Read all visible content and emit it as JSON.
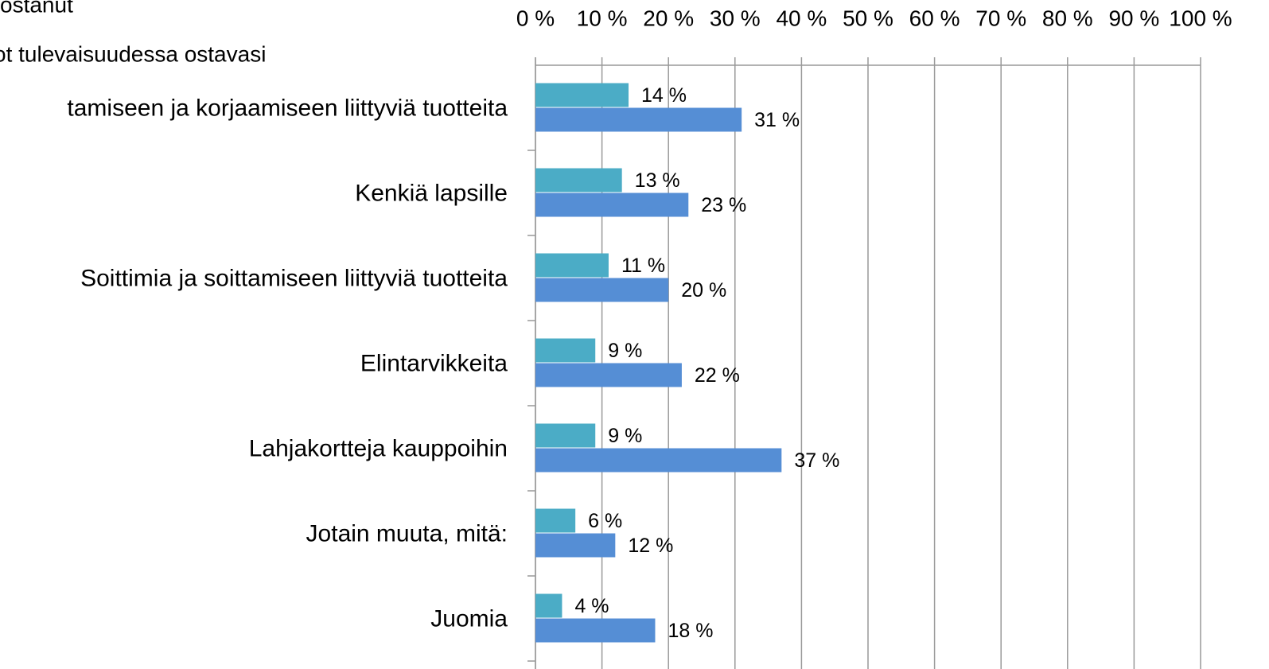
{
  "chart_data": {
    "type": "hbar",
    "categories": [
      "tamiseen ja korjaamiseen liittyviä tuotteita",
      "Kenkiä lapsille",
      "Soittimia ja soittamiseen liittyviä tuotteita",
      "Elintarvikkeita",
      "Lahjakortteja kauppoihin",
      "Jotain muuta, mitä:",
      "Juomia"
    ],
    "series": [
      {
        "name": "ostanut",
        "color": "#4bacc6",
        "values": [
          14,
          13,
          11,
          9,
          9,
          6,
          4
        ],
        "value_labels": [
          "14 %",
          "13 %",
          "11 %",
          "9 %",
          "9 %",
          "6 %",
          "4 %"
        ]
      },
      {
        "name": "ot tulevaisuudessa ostavasi",
        "color": "#558ed5",
        "values": [
          31,
          23,
          20,
          22,
          37,
          12,
          18
        ],
        "value_labels": [
          "31 %",
          "23 %",
          "20 %",
          "22 %",
          "37 %",
          "12 %",
          "18 %"
        ]
      }
    ],
    "xlim": [
      0,
      100
    ],
    "xticks": [
      {
        "value": 0,
        "label": "0 %"
      },
      {
        "value": 10,
        "label": "10 %"
      },
      {
        "value": 20,
        "label": "20 %"
      },
      {
        "value": 30,
        "label": "30 %"
      },
      {
        "value": 40,
        "label": "40 %"
      },
      {
        "value": 50,
        "label": "50 %"
      },
      {
        "value": 60,
        "label": "60 %"
      },
      {
        "value": 70,
        "label": "70 %"
      },
      {
        "value": 80,
        "label": "80 %"
      },
      {
        "value": 90,
        "label": "90 %"
      },
      {
        "value": 100,
        "label": "100 %"
      }
    ],
    "grid": true
  }
}
